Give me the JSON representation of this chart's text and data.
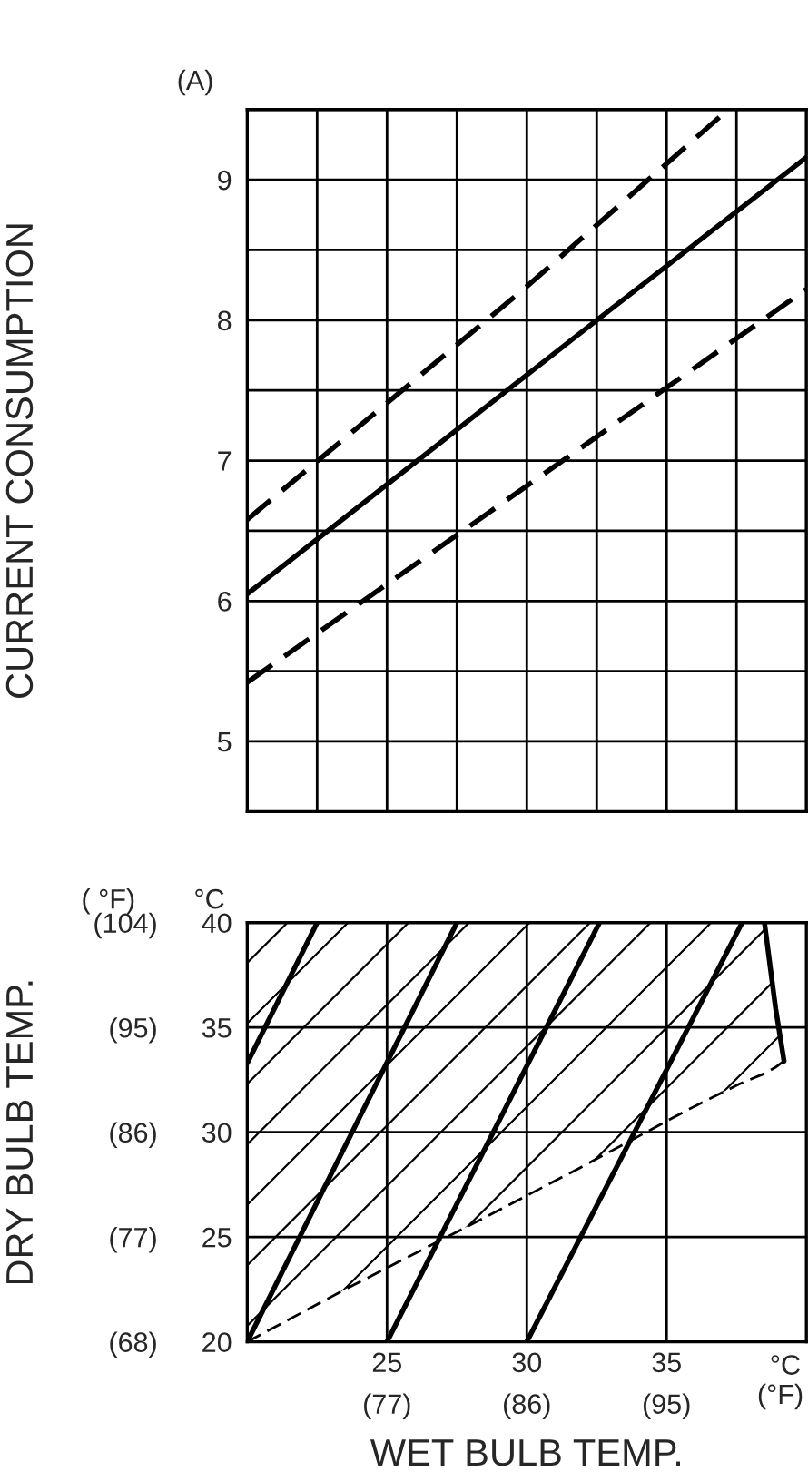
{
  "chart_data": [
    {
      "type": "line",
      "ylabel": "CURRENT CONSUMPTION",
      "annotations": [
        "(A)"
      ],
      "xlim": [
        20,
        40
      ],
      "ylim": [
        4.5,
        9.5
      ],
      "xticks": [
        20,
        22.5,
        25,
        27.5,
        30,
        32.5,
        35,
        37.5,
        40
      ],
      "yticks": [
        {
          "value": 4.5,
          "label": null
        },
        5,
        {
          "value": 5.5,
          "label": null
        },
        6,
        {
          "value": 6.5,
          "label": null
        },
        7,
        {
          "value": 7.5,
          "label": null
        },
        8,
        {
          "value": 8.5,
          "label": null
        },
        9,
        {
          "value": 9.5,
          "label": null
        }
      ],
      "tick_labels": "y",
      "grid": true,
      "series": [
        {
          "x": [
            20,
            30,
            37.2
          ],
          "values": [
            6.58,
            8.24,
            9.5
          ],
          "color": "#000000",
          "line_style": "dashed"
        },
        {
          "x": [
            20,
            32.5,
            40
          ],
          "values": [
            6.05,
            8.0,
            9.16
          ],
          "color": "#000000",
          "line_style": "solid"
        },
        {
          "x": [
            20,
            30,
            40
          ],
          "values": [
            5.42,
            6.82,
            8.22
          ],
          "color": "#000000",
          "line_style": "dashed"
        }
      ]
    },
    {
      "type": "line",
      "y2label": "DRY BULB TEMP.",
      "xlabel": "WET BULB TEMP.",
      "annotations": [
        "( °F)",
        "°C",
        "°C",
        "(°F)"
      ],
      "xlim": [
        20,
        40
      ],
      "ylim": [
        20,
        40
      ],
      "xticks": [
        25,
        30,
        35
      ],
      "yticks": [
        20,
        25,
        30,
        35,
        40
      ],
      "x2lim": [
        68,
        104
      ],
      "x2ticks": [
        {
          "value": 77,
          "label": "(77)"
        },
        {
          "value": 86,
          "label": "(86)"
        },
        {
          "value": 95,
          "label": "(95)"
        }
      ],
      "y2lim": [
        68,
        104
      ],
      "y2ticks": [
        {
          "value": 68,
          "label": "(68)"
        },
        {
          "value": 77,
          "label": "(77)"
        },
        {
          "value": 86,
          "label": "(86)"
        },
        {
          "value": 95,
          "label": "(95)"
        },
        {
          "value": 104,
          "label": "(104)"
        }
      ],
      "grid": true,
      "series": [
        {
          "type": "line",
          "x": [
            20,
            23.5,
            28.6,
            31.9,
            35.8,
            37.6,
            38.5,
            38.9,
            39.2
          ],
          "values": [
            20,
            22.5,
            26.0,
            28.3,
            31.1,
            32.3,
            32.8,
            33.1,
            33.4
          ],
          "lower": [
            20,
            22.5,
            26.0,
            28.3,
            31.1,
            32.3,
            32.8,
            33.1,
            33.4
          ],
          "upper": [
            40,
            40,
            40,
            40,
            40,
            40,
            40,
            35.9,
            33.4
          ],
          "color": "#000000",
          "line_style": "dashed"
        },
        {
          "x": [
            38.5,
            38.9,
            39.2
          ],
          "values": [
            40,
            35.9,
            33.4
          ],
          "color": "#000000",
          "line_style": "solid"
        },
        {
          "x": [
            20,
            22.5
          ],
          "values": [
            33.3,
            40
          ],
          "color": "#000000",
          "line_style": "solid"
        },
        {
          "x": [
            20,
            27.5
          ],
          "values": [
            20,
            40
          ],
          "color": "#000000",
          "line_style": "solid"
        },
        {
          "x": [
            25,
            32.6
          ],
          "values": [
            20,
            40
          ],
          "color": "#000000",
          "line_style": "solid"
        },
        {
          "x": [
            30,
            37.7
          ],
          "values": [
            20,
            40
          ],
          "color": "#000000",
          "line_style": "solid"
        }
      ]
    }
  ]
}
